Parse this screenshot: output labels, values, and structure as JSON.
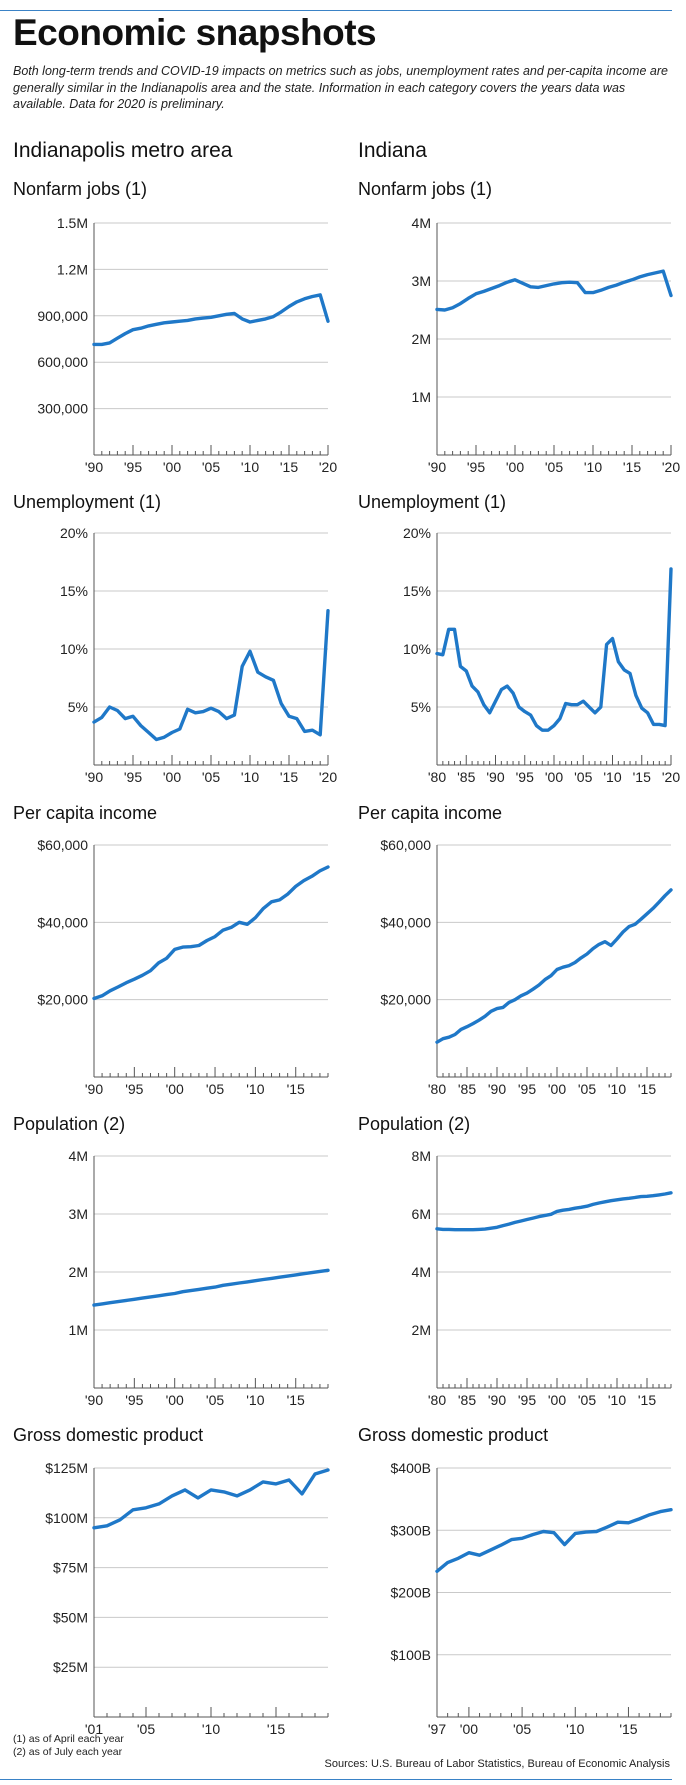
{
  "header": {
    "title": "Economic snapshots",
    "subtitle": "Both long-term trends and COVID-19 impacts on metrics such as jobs, unemployment rates and per-capita income are generally similar in the Indianapolis area and the state. Information in each category covers the years data was available. Data for 2020 is preliminary."
  },
  "columns": {
    "left": "Indianapolis metro area",
    "right": "Indiana"
  },
  "footer": {
    "note1": "(1) as of April each year",
    "note2": "(2) as of July each year",
    "sources": "Sources: U.S. Bureau of Labor Statistics, Bureau of Economic Analysis"
  },
  "colors": {
    "line": "#1f78c8",
    "rule": "#3a82c6",
    "axis": "#555555"
  },
  "chart_data": [
    {
      "id": "indy-jobs",
      "type": "line",
      "title": "Nonfarm jobs (1)",
      "ylim": [
        0,
        1500000
      ],
      "yticks": [
        300000,
        600000,
        900000,
        1200000,
        1500000
      ],
      "ytick_labels": [
        "300,000",
        "600,000",
        "900,000",
        "1.2M",
        "1.5M"
      ],
      "xlim": [
        1990,
        2020
      ],
      "xtick_labels": [
        "'90",
        "'95",
        "'00",
        "'05",
        "'10",
        "'15",
        "'20"
      ],
      "x": [
        1990,
        1991,
        1992,
        1993,
        1994,
        1995,
        1996,
        1997,
        1998,
        1999,
        2000,
        2001,
        2002,
        2003,
        2004,
        2005,
        2006,
        2007,
        2008,
        2009,
        2010,
        2011,
        2012,
        2013,
        2014,
        2015,
        2016,
        2017,
        2018,
        2019,
        2020
      ],
      "values": [
        715000,
        715000,
        725000,
        755000,
        785000,
        810000,
        820000,
        835000,
        845000,
        855000,
        860000,
        865000,
        870000,
        880000,
        885000,
        890000,
        900000,
        910000,
        915000,
        880000,
        860000,
        870000,
        880000,
        895000,
        925000,
        960000,
        990000,
        1010000,
        1025000,
        1035000,
        865000
      ]
    },
    {
      "id": "in-jobs",
      "type": "line",
      "title": "Nonfarm jobs (1)",
      "ylim": [
        0,
        4000000
      ],
      "yticks": [
        1000000,
        2000000,
        3000000,
        4000000
      ],
      "ytick_labels": [
        "1M",
        "2M",
        "3M",
        "4M"
      ],
      "xlim": [
        1990,
        2020
      ],
      "xtick_labels": [
        "'90",
        "'95",
        "'00",
        "'05",
        "'10",
        "'15",
        "'20"
      ],
      "x": [
        1990,
        1991,
        1992,
        1993,
        1994,
        1995,
        1996,
        1997,
        1998,
        1999,
        2000,
        2001,
        2002,
        2003,
        2004,
        2005,
        2006,
        2007,
        2008,
        2009,
        2010,
        2011,
        2012,
        2013,
        2014,
        2015,
        2016,
        2017,
        2018,
        2019,
        2020
      ],
      "values": [
        2510000,
        2500000,
        2540000,
        2610000,
        2700000,
        2780000,
        2820000,
        2870000,
        2920000,
        2980000,
        3020000,
        2960000,
        2900000,
        2890000,
        2920000,
        2950000,
        2970000,
        2980000,
        2970000,
        2800000,
        2800000,
        2840000,
        2890000,
        2930000,
        2980000,
        3020000,
        3070000,
        3110000,
        3140000,
        3170000,
        2750000
      ]
    },
    {
      "id": "indy-unemp",
      "type": "line",
      "title": "Unemployment (1)",
      "ylim": [
        0,
        20
      ],
      "yticks": [
        5,
        10,
        15,
        20
      ],
      "ytick_labels": [
        "5%",
        "10%",
        "15%",
        "20%"
      ],
      "xlim": [
        1990,
        2020
      ],
      "xtick_labels": [
        "'90",
        "'95",
        "'00",
        "'05",
        "'10",
        "'15",
        "'20"
      ],
      "x": [
        1990,
        1991,
        1992,
        1993,
        1994,
        1995,
        1996,
        1997,
        1998,
        1999,
        2000,
        2001,
        2002,
        2003,
        2004,
        2005,
        2006,
        2007,
        2008,
        2009,
        2010,
        2011,
        2012,
        2013,
        2014,
        2015,
        2016,
        2017,
        2018,
        2019,
        2020
      ],
      "values": [
        3.7,
        4.1,
        5.0,
        4.7,
        4.0,
        4.2,
        3.4,
        2.8,
        2.2,
        2.4,
        2.8,
        3.1,
        4.8,
        4.5,
        4.6,
        4.9,
        4.6,
        4.0,
        4.3,
        8.5,
        9.8,
        8.0,
        7.6,
        7.3,
        5.3,
        4.2,
        4.0,
        2.9,
        3.0,
        2.6,
        13.3
      ]
    },
    {
      "id": "in-unemp",
      "type": "line",
      "title": "Unemployment (1)",
      "ylim": [
        0,
        20
      ],
      "yticks": [
        5,
        10,
        15,
        20
      ],
      "ytick_labels": [
        "5%",
        "10%",
        "15%",
        "20%"
      ],
      "xlim": [
        1980,
        2020
      ],
      "xtick_labels": [
        "'80",
        "'85",
        "'90",
        "'95",
        "'00",
        "'05",
        "'10",
        "'15",
        "'20"
      ],
      "x": [
        1980,
        1981,
        1982,
        1983,
        1984,
        1985,
        1986,
        1987,
        1988,
        1989,
        1990,
        1991,
        1992,
        1993,
        1994,
        1995,
        1996,
        1997,
        1998,
        1999,
        2000,
        2001,
        2002,
        2003,
        2004,
        2005,
        2006,
        2007,
        2008,
        2009,
        2010,
        2011,
        2012,
        2013,
        2014,
        2015,
        2016,
        2017,
        2018,
        2019,
        2020
      ],
      "values": [
        9.6,
        9.5,
        11.7,
        11.7,
        8.5,
        8.1,
        6.8,
        6.3,
        5.2,
        4.5,
        5.5,
        6.5,
        6.8,
        6.2,
        5.0,
        4.6,
        4.3,
        3.4,
        3.0,
        3.0,
        3.4,
        4.0,
        5.3,
        5.2,
        5.2,
        5.5,
        5.0,
        4.5,
        5.0,
        10.4,
        10.9,
        8.9,
        8.2,
        7.9,
        6.0,
        4.9,
        4.5,
        3.5,
        3.5,
        3.4,
        16.9
      ]
    },
    {
      "id": "indy-income",
      "type": "line",
      "title": "Per capita income",
      "ylim": [
        0,
        60000
      ],
      "yticks": [
        20000,
        40000,
        60000
      ],
      "ytick_labels": [
        "$20,000",
        "$40,000",
        "$60,000"
      ],
      "xlim": [
        1990,
        2019
      ],
      "xtick_labels": [
        "'90",
        "'95",
        "'00",
        "'05",
        "'10",
        "'15"
      ],
      "x": [
        1990,
        1991,
        1992,
        1993,
        1994,
        1995,
        1996,
        1997,
        1998,
        1999,
        2000,
        2001,
        2002,
        2003,
        2004,
        2005,
        2006,
        2007,
        2008,
        2009,
        2010,
        2011,
        2012,
        2013,
        2014,
        2015,
        2016,
        2017,
        2018,
        2019
      ],
      "values": [
        20300,
        21000,
        22300,
        23300,
        24400,
        25300,
        26300,
        27500,
        29500,
        30700,
        33000,
        33600,
        33700,
        34000,
        35300,
        36300,
        38000,
        38700,
        40000,
        39500,
        41200,
        43600,
        45300,
        45800,
        47300,
        49300,
        50800,
        51900,
        53300,
        54300
      ]
    },
    {
      "id": "in-income",
      "type": "line",
      "title": "Per capita income",
      "ylim": [
        0,
        60000
      ],
      "yticks": [
        20000,
        40000,
        60000
      ],
      "ytick_labels": [
        "$20,000",
        "$40,000",
        "$60,000"
      ],
      "xlim": [
        1980,
        2019
      ],
      "xtick_labels": [
        "'80",
        "'85",
        "'90",
        "'95",
        "'00",
        "'05",
        "'10",
        "'15"
      ],
      "x": [
        1980,
        1981,
        1982,
        1983,
        1984,
        1985,
        1986,
        1987,
        1988,
        1989,
        1990,
        1991,
        1992,
        1993,
        1994,
        1995,
        1996,
        1997,
        1998,
        1999,
        2000,
        2001,
        2002,
        2003,
        2004,
        2005,
        2006,
        2007,
        2008,
        2009,
        2010,
        2011,
        2012,
        2013,
        2014,
        2015,
        2016,
        2017,
        2018,
        2019
      ],
      "values": [
        9000,
        9900,
        10300,
        11000,
        12300,
        13000,
        13800,
        14700,
        15700,
        17000,
        17700,
        18000,
        19300,
        20000,
        21000,
        21700,
        22700,
        23800,
        25200,
        26200,
        27800,
        28400,
        28800,
        29600,
        30800,
        31800,
        33200,
        34300,
        35000,
        34000,
        35700,
        37500,
        38900,
        39500,
        40800,
        42200,
        43600,
        45200,
        46900,
        48400
      ]
    },
    {
      "id": "indy-pop",
      "type": "line",
      "title": "Population (2)",
      "ylim": [
        0,
        4000000
      ],
      "yticks": [
        1000000,
        2000000,
        3000000,
        4000000
      ],
      "ytick_labels": [
        "1M",
        "2M",
        "3M",
        "4M"
      ],
      "xlim": [
        1990,
        2019
      ],
      "xtick_labels": [
        "'90",
        "'95",
        "'00",
        "'05",
        "'10",
        "'15"
      ],
      "x": [
        1990,
        1991,
        1992,
        1993,
        1994,
        1995,
        1996,
        1997,
        1998,
        1999,
        2000,
        2001,
        2002,
        2003,
        2004,
        2005,
        2006,
        2007,
        2008,
        2009,
        2010,
        2011,
        2012,
        2013,
        2014,
        2015,
        2016,
        2017,
        2018,
        2019
      ],
      "values": [
        1430000,
        1450000,
        1470000,
        1490000,
        1510000,
        1530000,
        1550000,
        1570000,
        1590000,
        1610000,
        1630000,
        1660000,
        1680000,
        1700000,
        1720000,
        1740000,
        1770000,
        1790000,
        1810000,
        1830000,
        1850000,
        1870000,
        1890000,
        1910000,
        1930000,
        1950000,
        1970000,
        1990000,
        2010000,
        2030000
      ]
    },
    {
      "id": "in-pop",
      "type": "line",
      "title": "Population (2)",
      "ylim": [
        0,
        8000000
      ],
      "yticks": [
        2000000,
        4000000,
        6000000,
        8000000
      ],
      "ytick_labels": [
        "2M",
        "4M",
        "6M",
        "8M"
      ],
      "xlim": [
        1980,
        2019
      ],
      "xtick_labels": [
        "'80",
        "'85",
        "'90",
        "'95",
        "'00",
        "'05",
        "'10",
        "'15"
      ],
      "x": [
        1980,
        1981,
        1982,
        1983,
        1984,
        1985,
        1986,
        1987,
        1988,
        1989,
        1990,
        1991,
        1992,
        1993,
        1994,
        1995,
        1996,
        1997,
        1998,
        1999,
        2000,
        2001,
        2002,
        2003,
        2004,
        2005,
        2006,
        2007,
        2008,
        2009,
        2010,
        2011,
        2012,
        2013,
        2014,
        2015,
        2016,
        2017,
        2018,
        2019
      ],
      "values": [
        5490000,
        5470000,
        5470000,
        5460000,
        5460000,
        5460000,
        5460000,
        5470000,
        5480000,
        5510000,
        5540000,
        5600000,
        5650000,
        5710000,
        5760000,
        5810000,
        5860000,
        5910000,
        5950000,
        5990000,
        6090000,
        6130000,
        6160000,
        6200000,
        6230000,
        6270000,
        6330000,
        6380000,
        6420000,
        6460000,
        6490000,
        6520000,
        6540000,
        6570000,
        6600000,
        6610000,
        6630000,
        6660000,
        6690000,
        6730000
      ]
    },
    {
      "id": "indy-gdp",
      "type": "line",
      "title": "Gross domestic product",
      "ylim": [
        0,
        125
      ],
      "yticks": [
        25,
        50,
        75,
        100,
        125
      ],
      "ytick_labels": [
        "$25M",
        "$50M",
        "$75M",
        "$100M",
        "$125M"
      ],
      "xlim": [
        2001,
        2019
      ],
      "xtick_labels": [
        "'01",
        "'05",
        "'10",
        "'15"
      ],
      "x": [
        2001,
        2002,
        2003,
        2004,
        2005,
        2006,
        2007,
        2008,
        2009,
        2010,
        2011,
        2012,
        2013,
        2014,
        2015,
        2016,
        2017,
        2018,
        2019
      ],
      "values": [
        95,
        96,
        99,
        104,
        105,
        107,
        111,
        114,
        110,
        114,
        113,
        111,
        114,
        118,
        117,
        119,
        112,
        122,
        124
      ]
    },
    {
      "id": "in-gdp",
      "type": "line",
      "title": "Gross domestic product",
      "ylim": [
        0,
        400
      ],
      "yticks": [
        100,
        200,
        300,
        400
      ],
      "ytick_labels": [
        "$100B",
        "$200B",
        "$300B",
        "$400B"
      ],
      "xlim": [
        1997,
        2019
      ],
      "xtick_labels": [
        "'97",
        "'00",
        "'05",
        "'10",
        "'15"
      ],
      "x": [
        1997,
        1998,
        1999,
        2000,
        2001,
        2002,
        2003,
        2004,
        2005,
        2006,
        2007,
        2008,
        2009,
        2010,
        2011,
        2012,
        2013,
        2014,
        2015,
        2016,
        2017,
        2018,
        2019
      ],
      "values": [
        234,
        248,
        255,
        264,
        260,
        268,
        276,
        285,
        287,
        293,
        298,
        296,
        277,
        295,
        297,
        298,
        305,
        313,
        312,
        318,
        325,
        330,
        333
      ]
    }
  ]
}
